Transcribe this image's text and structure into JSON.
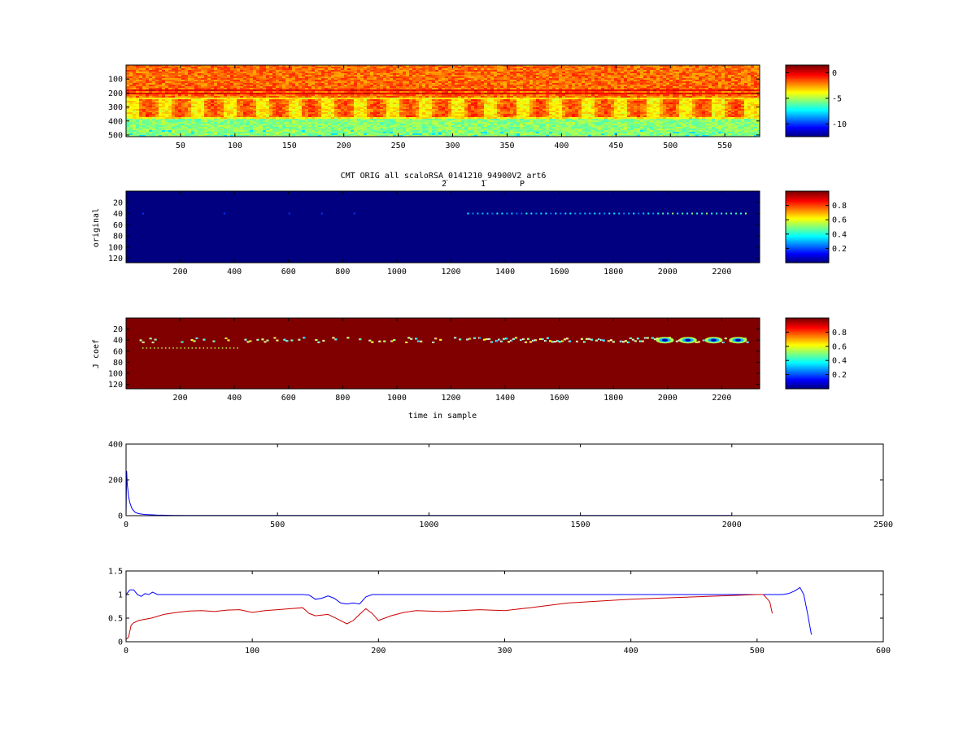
{
  "chart_data": [
    {
      "type": "heatmap",
      "id": "spectrogram",
      "xticks": [
        50,
        100,
        150,
        200,
        250,
        300,
        350,
        400,
        450,
        500,
        550
      ],
      "xlim": [
        0,
        582
      ],
      "yticks": [
        100,
        200,
        300,
        400,
        500
      ],
      "ylim": [
        0,
        512
      ],
      "ydir": "reverse",
      "colorbar_ticks": [
        0,
        -5,
        -10
      ],
      "colorbar_range": [
        -12.5,
        1.5
      ],
      "colormap": "jet",
      "features": {
        "strong_horizontal_bands_y": [
          175,
          205
        ],
        "periodic_blob_centers_x": [
          20,
          50,
          80,
          110,
          140,
          170,
          200,
          230,
          260,
          290,
          320,
          350,
          380,
          410,
          440,
          470,
          500,
          530,
          560
        ],
        "blob_y_range": [
          240,
          370
        ]
      }
    },
    {
      "type": "heatmap",
      "id": "original",
      "title": "CMT ORIG all scaloRSA_0141210_94900V2 art6",
      "annotations": [
        "2",
        "1",
        "P"
      ],
      "ylabel": "original",
      "xticks": [
        200,
        400,
        600,
        800,
        1000,
        1200,
        1400,
        1600,
        1800,
        2000,
        2200
      ],
      "xlim": [
        0,
        2340
      ],
      "yticks": [
        20,
        40,
        60,
        80,
        100,
        120
      ],
      "ylim": [
        0,
        128
      ],
      "ydir": "reverse",
      "colorbar_ticks": [
        0.8,
        0.6,
        0.4,
        0.2
      ],
      "colorbar_range": [
        0,
        1
      ],
      "colormap": "jet",
      "features": {
        "background_value": 0.0,
        "dot_row_y": 40,
        "dot_x_range": [
          1260,
          2300
        ]
      }
    },
    {
      "type": "heatmap",
      "id": "jcoef",
      "ylabel": "J coef",
      "xlabel": "time in sample",
      "xticks": [
        200,
        400,
        600,
        800,
        1000,
        1200,
        1400,
        1600,
        1800,
        2000,
        2200
      ],
      "xlim": [
        0,
        2340
      ],
      "yticks": [
        20,
        40,
        60,
        80,
        100,
        120
      ],
      "ylim": [
        0,
        128
      ],
      "ydir": "reverse",
      "colorbar_ticks": [
        0.8,
        0.6,
        0.4,
        0.2
      ],
      "colorbar_range": [
        0,
        1
      ],
      "colormap": "jet",
      "features": {
        "background_value": 1.0,
        "event_row_y": 40,
        "large_events_x": [
          1990,
          2075,
          2170,
          2260
        ],
        "small_event_range": [
          50,
          2300
        ]
      }
    },
    {
      "type": "line",
      "id": "decay",
      "xlim": [
        0,
        2500
      ],
      "ylim": [
        0,
        400
      ],
      "xticks": [
        0,
        500,
        1000,
        1500,
        2000,
        2500
      ],
      "yticks": [
        0,
        200,
        400
      ],
      "series": [
        {
          "color": "#0000ff",
          "x": [
            0,
            2,
            4,
            8,
            12,
            16,
            20,
            25,
            30,
            40,
            50,
            60,
            70,
            80,
            100,
            150,
            200,
            400,
            1000,
            2000
          ],
          "y": [
            0,
            250,
            175,
            110,
            75,
            55,
            38,
            28,
            18,
            12,
            9,
            7,
            6,
            5,
            3,
            2,
            1.5,
            1,
            1,
            1
          ]
        }
      ]
    },
    {
      "type": "line",
      "id": "ratio",
      "xlim": [
        0,
        600
      ],
      "ylim": [
        0,
        1.5
      ],
      "xticks": [
        0,
        100,
        200,
        300,
        400,
        500,
        600
      ],
      "yticks": [
        0,
        0.5,
        1,
        1.5
      ],
      "series": [
        {
          "color": "#0000ff",
          "x": [
            0,
            3,
            6,
            9,
            12,
            15,
            18,
            21,
            25,
            30,
            40,
            60,
            100,
            140,
            145,
            150,
            155,
            160,
            165,
            170,
            175,
            180,
            185,
            190,
            195,
            200,
            250,
            300,
            400,
            500,
            510,
            520,
            525,
            530,
            534,
            537,
            540,
            543
          ],
          "y": [
            1.0,
            1.1,
            1.1,
            1.0,
            0.96,
            1.02,
            1.0,
            1.05,
            1.0,
            1.0,
            1.0,
            1.0,
            1.0,
            1.0,
            0.99,
            0.9,
            0.92,
            0.97,
            0.92,
            0.82,
            0.8,
            0.82,
            0.8,
            0.95,
            1.0,
            1.0,
            1.0,
            1.0,
            1.0,
            1.0,
            1.0,
            1.0,
            1.02,
            1.08,
            1.15,
            1.0,
            0.6,
            0.15
          ]
        },
        {
          "color": "#cc0000",
          "x": [
            0,
            2,
            4,
            6,
            10,
            20,
            30,
            40,
            50,
            60,
            70,
            80,
            90,
            100,
            110,
            120,
            130,
            140,
            145,
            150,
            160,
            170,
            175,
            180,
            185,
            190,
            195,
            200,
            210,
            220,
            230,
            250,
            280,
            300,
            320,
            350,
            400,
            450,
            500,
            505,
            510,
            512
          ],
          "y": [
            0.05,
            0.1,
            0.35,
            0.4,
            0.45,
            0.5,
            0.58,
            0.62,
            0.65,
            0.66,
            0.64,
            0.67,
            0.68,
            0.62,
            0.66,
            0.68,
            0.7,
            0.72,
            0.6,
            0.55,
            0.58,
            0.45,
            0.38,
            0.45,
            0.58,
            0.7,
            0.6,
            0.45,
            0.55,
            0.62,
            0.66,
            0.64,
            0.68,
            0.66,
            0.72,
            0.82,
            0.9,
            0.95,
            1.0,
            1.0,
            0.85,
            0.6
          ]
        }
      ]
    }
  ]
}
